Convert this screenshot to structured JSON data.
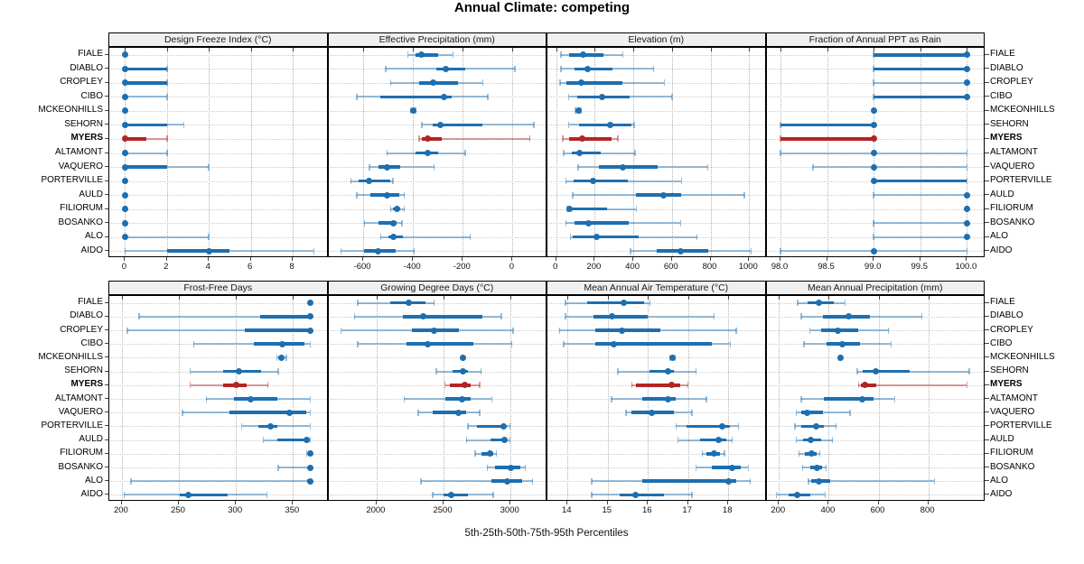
{
  "title": "Annual Climate: competing",
  "caption": "5th-25th-50th-75th-95th Percentiles",
  "percentile_labels": [
    "5th",
    "25th",
    "50th",
    "75th",
    "95th"
  ],
  "sites": [
    "FIALE",
    "DIABLO",
    "CROPLEY",
    "CIBO",
    "MCKEONHILLS",
    "SEHORN",
    "MYERS",
    "ALTAMONT",
    "VAQUERO",
    "PORTERVILLE",
    "AULD",
    "FILIORUM",
    "BOSANKO",
    "ALO",
    "AIDO"
  ],
  "highlight_site": "MYERS",
  "colors": {
    "blue": "#1d6fb0",
    "blue_light": "rgba(29,111,176,0.45)",
    "red": "#b22525",
    "red_light": "rgba(178,37,37,0.45)",
    "strip_bg": "#f0f0f0",
    "grid": "#b3b3b3"
  },
  "chart_data": [
    {
      "type": "dotplot-interval",
      "title": "Design Freeze Index (°C)",
      "row": "top",
      "ticks": [
        0,
        2,
        4,
        6,
        8
      ],
      "tick_labels": [
        "0",
        "2",
        "4",
        "6",
        "8"
      ],
      "xmin": -0.75,
      "xmax": 9.7,
      "values": {
        "FIALE": [
          0,
          0,
          0,
          0,
          0
        ],
        "DIABLO": [
          0,
          0,
          0,
          2,
          2
        ],
        "CROPLEY": [
          0,
          0,
          0,
          2,
          2
        ],
        "CIBO": [
          0,
          0,
          0,
          0,
          2
        ],
        "MCKEONHILLS": [
          0,
          0,
          0,
          0,
          0
        ],
        "SEHORN": [
          0,
          0,
          0,
          2,
          2.8
        ],
        "MYERS": [
          0,
          0,
          0,
          1,
          2
        ],
        "ALTAMONT": [
          0,
          0,
          0,
          0,
          2
        ],
        "VAQUERO": [
          0,
          0,
          0,
          2,
          4
        ],
        "PORTERVILLE": [
          0,
          0,
          0,
          0,
          0
        ],
        "AULD": [
          0,
          0,
          0,
          0,
          0
        ],
        "FILIORUM": [
          0,
          0,
          0,
          0,
          0
        ],
        "BOSANKO": [
          0,
          0,
          0,
          0,
          0
        ],
        "ALO": [
          0,
          0,
          0,
          0,
          4
        ],
        "AIDO": [
          0,
          2,
          4,
          5,
          9
        ]
      }
    },
    {
      "type": "dotplot-interval",
      "title": "Effective Precipitation (mm)",
      "row": "top",
      "ticks": [
        -600,
        -400,
        -200,
        0
      ],
      "tick_labels": [
        "-600",
        "-400",
        "-200",
        "0"
      ],
      "xmin": -740,
      "xmax": 140,
      "values": {
        "FIALE": [
          -420,
          -390,
          -365,
          -300,
          -240
        ],
        "DIABLO": [
          -510,
          -305,
          -270,
          -190,
          10
        ],
        "CROPLEY": [
          -490,
          -375,
          -320,
          -220,
          -120
        ],
        "CIBO": [
          -625,
          -530,
          -275,
          -245,
          -100
        ],
        "MCKEONHILLS": [
          -410,
          -404,
          -400,
          -396,
          -390
        ],
        "SEHORN": [
          -365,
          -320,
          -290,
          -120,
          85
        ],
        "MYERS": [
          -375,
          -365,
          -340,
          -285,
          70
        ],
        "ALTAMONT": [
          -505,
          -390,
          -340,
          -300,
          -190
        ],
        "VAQUERO": [
          -575,
          -540,
          -505,
          -450,
          -315
        ],
        "PORTERVILLE": [
          -650,
          -620,
          -575,
          -490,
          -480
        ],
        "AULD": [
          -625,
          -570,
          -505,
          -455,
          -435
        ],
        "FILIORUM": [
          -490,
          -480,
          -465,
          -450,
          -435
        ],
        "BOSANKO": [
          -595,
          -540,
          -480,
          -465,
          -445
        ],
        "ALO": [
          -530,
          -500,
          -480,
          -440,
          -170
        ],
        "AIDO": [
          -690,
          -595,
          -540,
          -470,
          -395
        ]
      }
    },
    {
      "type": "dotplot-interval",
      "title": "Elevation (m)",
      "row": "top",
      "ticks": [
        0,
        200,
        400,
        600,
        800,
        1000
      ],
      "tick_labels": [
        "0",
        "200",
        "400",
        "600",
        "800",
        "1000"
      ],
      "xmin": -45,
      "xmax": 1090,
      "values": {
        "FIALE": [
          25,
          65,
          140,
          245,
          345
        ],
        "DIABLO": [
          25,
          95,
          165,
          290,
          505
        ],
        "CROPLEY": [
          20,
          55,
          130,
          345,
          560
        ],
        "CIBO": [
          65,
          110,
          240,
          380,
          600
        ],
        "MCKEONHILLS": [
          100,
          108,
          115,
          121,
          128
        ],
        "SEHORN": [
          65,
          120,
          280,
          390,
          405
        ],
        "MYERS": [
          35,
          65,
          135,
          285,
          320
        ],
        "ALTAMONT": [
          40,
          80,
          120,
          230,
          410
        ],
        "VAQUERO": [
          115,
          220,
          345,
          525,
          785
        ],
        "PORTERVILLE": [
          50,
          90,
          190,
          370,
          650
        ],
        "AULD": [
          85,
          415,
          555,
          650,
          975
        ],
        "FILIORUM": [
          58,
          64,
          72,
          265,
          415
        ],
        "BOSANKO": [
          50,
          95,
          170,
          375,
          645
        ],
        "ALO": [
          75,
          86,
          210,
          430,
          730
        ],
        "AIDO": [
          385,
          520,
          645,
          790,
          1010
        ]
      }
    },
    {
      "type": "dotplot-interval",
      "title": "Fraction of Annual PPT as Rain",
      "row": "top",
      "ticks": [
        98.0,
        98.5,
        99.0,
        99.5,
        100.0
      ],
      "tick_labels": [
        "98.0",
        "98.5",
        "99.0",
        "99.5",
        "100.0"
      ],
      "xmin": 97.85,
      "xmax": 100.2,
      "values": {
        "FIALE": [
          99,
          99,
          100,
          100,
          100
        ],
        "DIABLO": [
          99,
          99,
          100,
          100,
          100
        ],
        "CROPLEY": [
          99,
          100,
          100,
          100,
          100
        ],
        "CIBO": [
          99,
          99,
          100,
          100,
          100
        ],
        "MCKEONHILLS": [
          99,
          99,
          99,
          99,
          99
        ],
        "SEHORN": [
          98,
          98,
          99,
          99,
          99
        ],
        "MYERS": [
          98,
          98,
          99,
          99,
          99
        ],
        "ALTAMONT": [
          98,
          99,
          99,
          99,
          100
        ],
        "VAQUERO": [
          98.35,
          99,
          99,
          99,
          100
        ],
        "PORTERVILLE": [
          99,
          99,
          99,
          100,
          100
        ],
        "AULD": [
          99,
          100,
          100,
          100,
          100
        ],
        "FILIORUM": [
          100,
          100,
          100,
          100,
          100
        ],
        "BOSANKO": [
          99,
          100,
          100,
          100,
          100
        ],
        "ALO": [
          99,
          100,
          100,
          100,
          100
        ],
        "AIDO": [
          98,
          99,
          99,
          99,
          100
        ]
      }
    },
    {
      "type": "dotplot-interval",
      "title": "Frost-Free Days",
      "row": "bottom",
      "ticks": [
        200,
        250,
        300,
        350
      ],
      "tick_labels": [
        "200",
        "250",
        "300",
        "350"
      ],
      "xmin": 189,
      "xmax": 381,
      "values": {
        "FIALE": [
          365,
          365,
          365,
          365,
          365
        ],
        "DIABLO": [
          215,
          321,
          365,
          365,
          365
        ],
        "CROPLEY": [
          205,
          308,
          365,
          365,
          365
        ],
        "CIBO": [
          263,
          316,
          341,
          360,
          365
        ],
        "MCKEONHILLS": [
          336,
          339,
          340,
          342,
          344
        ],
        "SEHORN": [
          260,
          289,
          303,
          322,
          337
        ],
        "MYERS": [
          260,
          289,
          300,
          309,
          328
        ],
        "ALTAMONT": [
          274,
          298,
          313,
          336,
          365
        ],
        "VAQUERO": [
          253,
          294,
          347,
          362,
          365
        ],
        "PORTERVILLE": [
          305,
          320,
          330,
          336,
          365
        ],
        "AULD": [
          324,
          336,
          362,
          365,
          365
        ],
        "FILIORUM": [
          362,
          365,
          365,
          365,
          365
        ],
        "BOSANKO": [
          337,
          365,
          365,
          365,
          365
        ],
        "ALO": [
          208,
          362,
          365,
          365,
          365
        ],
        "AIDO": [
          202,
          251,
          258,
          293,
          327
        ]
      }
    },
    {
      "type": "dotplot-interval",
      "title": "Growing Degree Days (°C)",
      "row": "bottom",
      "ticks": [
        2000,
        2500,
        3000
      ],
      "tick_labels": [
        "2000",
        "2500",
        "3000"
      ],
      "xmin": 1640,
      "xmax": 3275,
      "values": {
        "FIALE": [
          1860,
          2105,
          2240,
          2365,
          2430
        ],
        "DIABLO": [
          1835,
          2195,
          2345,
          2790,
          2930
        ],
        "CROPLEY": [
          1735,
          2265,
          2430,
          2615,
          3020
        ],
        "CIBO": [
          1860,
          2220,
          2385,
          2725,
          3010
        ],
        "MCKEONHILLS": [
          2640,
          2644,
          2646,
          2648,
          2652
        ],
        "SEHORN": [
          2445,
          2570,
          2645,
          2680,
          2780
        ],
        "MYERS": [
          2510,
          2545,
          2655,
          2705,
          2770
        ],
        "ALTAMONT": [
          2205,
          2510,
          2640,
          2705,
          2860
        ],
        "VAQUERO": [
          2310,
          2420,
          2610,
          2670,
          2770
        ],
        "PORTERVILLE": [
          2680,
          2750,
          2945,
          2960,
          2995
        ],
        "AULD": [
          2670,
          2850,
          2955,
          2975,
          2995
        ],
        "FILIORUM": [
          2735,
          2780,
          2850,
          2870,
          2895
        ],
        "BOSANKO": [
          2825,
          2885,
          3005,
          3075,
          3110
        ],
        "ALO": [
          2330,
          2860,
          2975,
          3085,
          3165
        ],
        "AIDO": [
          2420,
          2500,
          2555,
          2680,
          2870
        ]
      }
    },
    {
      "type": "dotplot-interval",
      "title": "Mean Annual Air Temperature (°C)",
      "row": "bottom",
      "ticks": [
        14,
        15,
        16,
        17,
        18
      ],
      "tick_labels": [
        "14",
        "15",
        "16",
        "17",
        "18"
      ],
      "xmin": 13.5,
      "xmax": 18.95,
      "values": {
        "FIALE": [
          13.95,
          14.5,
          15.4,
          15.9,
          16.05
        ],
        "DIABLO": [
          13.95,
          14.65,
          15.1,
          16.0,
          17.65
        ],
        "CROPLEY": [
          13.8,
          14.7,
          15.35,
          16.3,
          18.2
        ],
        "CIBO": [
          13.9,
          14.7,
          15.15,
          17.6,
          18.05
        ],
        "MCKEONHILLS": [
          16.55,
          16.6,
          16.62,
          16.65,
          16.68
        ],
        "SEHORN": [
          15.25,
          16.05,
          16.5,
          16.65,
          17.2
        ],
        "MYERS": [
          15.6,
          15.7,
          16.6,
          16.8,
          17.0
        ],
        "ALTAMONT": [
          15.1,
          15.85,
          16.5,
          16.7,
          17.45
        ],
        "VAQUERO": [
          15.45,
          15.6,
          16.1,
          16.65,
          17.1
        ],
        "PORTERVILLE": [
          16.7,
          16.95,
          17.85,
          18.05,
          18.25
        ],
        "AULD": [
          16.75,
          17.3,
          17.75,
          17.95,
          18.1
        ],
        "FILIORUM": [
          17.35,
          17.45,
          17.65,
          17.8,
          17.9
        ],
        "BOSANKO": [
          17.2,
          17.6,
          18.1,
          18.3,
          18.5
        ],
        "ALO": [
          14.6,
          15.85,
          18.0,
          18.2,
          18.55
        ],
        "AIDO": [
          14.6,
          15.3,
          15.7,
          16.4,
          17.1
        ]
      }
    },
    {
      "type": "dotplot-interval",
      "title": "Mean Annual Precipitation (mm)",
      "row": "bottom",
      "ticks": [
        200,
        400,
        600,
        800
      ],
      "tick_labels": [
        "200",
        "400",
        "600",
        "800"
      ],
      "xmin": 150,
      "xmax": 1030,
      "values": {
        "FIALE": [
          275,
          315,
          360,
          420,
          465
        ],
        "DIABLO": [
          290,
          375,
          480,
          565,
          775
        ],
        "CROPLEY": [
          325,
          370,
          435,
          520,
          640
        ],
        "CIBO": [
          300,
          390,
          455,
          525,
          650
        ],
        "MCKEONHILLS": [
          440,
          444,
          446,
          448,
          452
        ],
        "SEHORN": [
          515,
          535,
          590,
          725,
          965
        ],
        "MYERS": [
          520,
          528,
          545,
          590,
          955
        ],
        "ALTAMONT": [
          290,
          380,
          533,
          580,
          665
        ],
        "VAQUERO": [
          270,
          290,
          313,
          375,
          485
        ],
        "PORTERVILLE": [
          265,
          290,
          350,
          380,
          430
        ],
        "AULD": [
          270,
          297,
          327,
          370,
          415
        ],
        "FILIORUM": [
          280,
          305,
          330,
          350,
          365
        ],
        "BOSANKO": [
          295,
          325,
          355,
          375,
          390
        ],
        "ALO": [
          318,
          330,
          360,
          405,
          825
        ],
        "AIDO": [
          190,
          240,
          275,
          325,
          385
        ]
      }
    }
  ]
}
